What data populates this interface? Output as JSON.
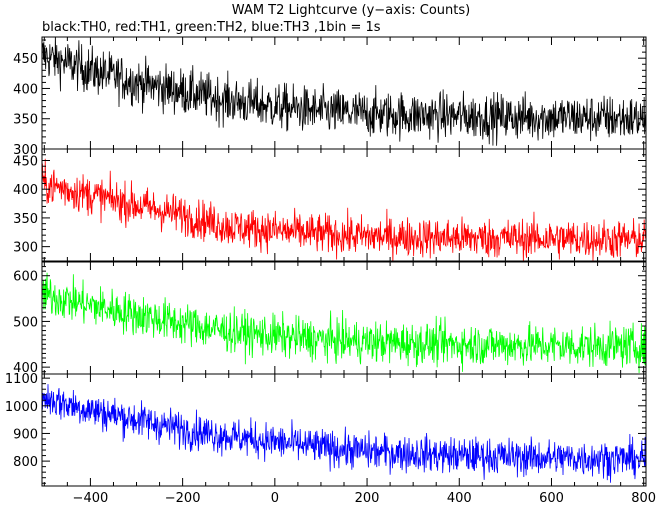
{
  "chart_data": {
    "type": "line",
    "title": "WAM T2 Lightcurve (y−axis: Counts)",
    "subtitle": "black:TH0, red:TH1, green:TH2, blue:TH3 ,1bin = 1s",
    "xlabel": "",
    "xlim": [
      -505,
      805
    ],
    "x_ticks": [
      -400,
      -200,
      0,
      200,
      400,
      600,
      800
    ],
    "x_tick_labels": [
      "−400",
      "−200",
      "0",
      "200",
      "400",
      "600",
      "800"
    ],
    "bin_seconds": 1,
    "grid": false,
    "legend": "subtitle text",
    "panels": [
      {
        "channel": "TH0",
        "color": "#000000",
        "ylim": [
          300,
          485
        ],
        "y_ticks": [
          300,
          350,
          400,
          450
        ],
        "trend": [
          [
            -505,
            455
          ],
          [
            -400,
            430
          ],
          [
            -300,
            410
          ],
          [
            -200,
            395
          ],
          [
            -100,
            380
          ],
          [
            0,
            370
          ],
          [
            100,
            362
          ],
          [
            200,
            358
          ],
          [
            400,
            354
          ],
          [
            600,
            352
          ],
          [
            805,
            350
          ]
        ],
        "noise": 38
      },
      {
        "channel": "TH1",
        "color": "#ff0000",
        "ylim": [
          275,
          470
        ],
        "y_ticks": [
          300,
          350,
          400,
          450
        ],
        "trend": [
          [
            -505,
            410
          ],
          [
            -400,
            390
          ],
          [
            -300,
            372
          ],
          [
            -200,
            355
          ],
          [
            -100,
            335
          ],
          [
            0,
            328
          ],
          [
            100,
            322
          ],
          [
            200,
            318
          ],
          [
            400,
            315
          ],
          [
            600,
            314
          ],
          [
            805,
            312
          ]
        ],
        "noise": 34
      },
      {
        "channel": "TH2",
        "color": "#00ff00",
        "ylim": [
          385,
          630
        ],
        "y_ticks": [
          400,
          500,
          600
        ],
        "trend": [
          [
            -505,
            560
          ],
          [
            -400,
            535
          ],
          [
            -300,
            515
          ],
          [
            -200,
            495
          ],
          [
            -100,
            478
          ],
          [
            0,
            468
          ],
          [
            100,
            460
          ],
          [
            200,
            455
          ],
          [
            400,
            450
          ],
          [
            600,
            447
          ],
          [
            805,
            445
          ]
        ],
        "noise": 45
      },
      {
        "channel": "TH3",
        "color": "#0000ff",
        "ylim": [
          710,
          1115
        ],
        "y_ticks": [
          800,
          900,
          1000,
          1100
        ],
        "trend": [
          [
            -505,
            1030
          ],
          [
            -400,
            985
          ],
          [
            -300,
            950
          ],
          [
            -200,
            915
          ],
          [
            -100,
            890
          ],
          [
            0,
            870
          ],
          [
            100,
            850
          ],
          [
            200,
            835
          ],
          [
            400,
            820
          ],
          [
            600,
            812
          ],
          [
            805,
            808
          ]
        ],
        "noise": 65
      }
    ]
  }
}
